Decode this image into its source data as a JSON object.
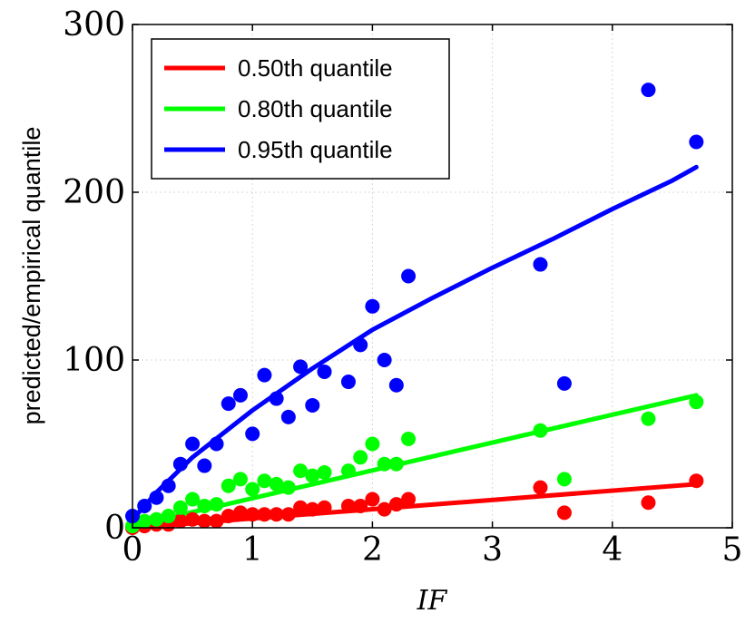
{
  "chart_data": {
    "type": "scatter",
    "xlabel": "IF",
    "ylabel": "predicted/empirical quantile",
    "xlim": [
      0,
      5
    ],
    "ylim": [
      0,
      300
    ],
    "xticks": [
      "0",
      "1",
      "2",
      "3",
      "4",
      "5"
    ],
    "yticks": [
      "0",
      "100",
      "200",
      "300"
    ],
    "grid": true,
    "legend_position": "top-left",
    "series": [
      {
        "name": "0.50th quantile",
        "color": "#ff0000",
        "points": [
          [
            0,
            0
          ],
          [
            0.1,
            1
          ],
          [
            0.2,
            2
          ],
          [
            0.3,
            2
          ],
          [
            0.4,
            4
          ],
          [
            0.5,
            5
          ],
          [
            0.6,
            4
          ],
          [
            0.7,
            4
          ],
          [
            0.8,
            7
          ],
          [
            0.9,
            9
          ],
          [
            1.0,
            8
          ],
          [
            1.1,
            8
          ],
          [
            1.2,
            8
          ],
          [
            1.3,
            8
          ],
          [
            1.4,
            12
          ],
          [
            1.5,
            11
          ],
          [
            1.6,
            12
          ],
          [
            1.8,
            13
          ],
          [
            1.9,
            13
          ],
          [
            2.0,
            17
          ],
          [
            2.1,
            11
          ],
          [
            2.2,
            14
          ],
          [
            2.3,
            17
          ],
          [
            3.4,
            24
          ],
          [
            3.6,
            9
          ],
          [
            4.3,
            15
          ],
          [
            4.7,
            28
          ]
        ],
        "fit": [
          [
            0,
            0
          ],
          [
            4.7,
            26
          ]
        ]
      },
      {
        "name": "0.80th quantile",
        "color": "#00ff00",
        "points": [
          [
            0,
            1
          ],
          [
            0.1,
            4
          ],
          [
            0.2,
            5
          ],
          [
            0.3,
            7
          ],
          [
            0.4,
            12
          ],
          [
            0.5,
            17
          ],
          [
            0.6,
            13
          ],
          [
            0.7,
            14
          ],
          [
            0.8,
            25
          ],
          [
            0.9,
            29
          ],
          [
            1.0,
            23
          ],
          [
            1.1,
            28
          ],
          [
            1.2,
            26
          ],
          [
            1.3,
            24
          ],
          [
            1.4,
            34
          ],
          [
            1.5,
            31
          ],
          [
            1.6,
            33
          ],
          [
            1.8,
            34
          ],
          [
            1.9,
            42
          ],
          [
            2.0,
            50
          ],
          [
            2.1,
            38
          ],
          [
            2.2,
            38
          ],
          [
            2.3,
            53
          ],
          [
            3.4,
            58
          ],
          [
            3.6,
            29
          ],
          [
            4.3,
            65
          ],
          [
            4.7,
            75
          ]
        ],
        "fit": [
          [
            0,
            1
          ],
          [
            4.7,
            79
          ]
        ]
      },
      {
        "name": "0.95th quantile",
        "color": "#0000ff",
        "points": [
          [
            0,
            7
          ],
          [
            0.1,
            13
          ],
          [
            0.2,
            18
          ],
          [
            0.3,
            25
          ],
          [
            0.4,
            38
          ],
          [
            0.5,
            50
          ],
          [
            0.6,
            37
          ],
          [
            0.7,
            50
          ],
          [
            0.8,
            74
          ],
          [
            0.9,
            79
          ],
          [
            1.0,
            56
          ],
          [
            1.1,
            91
          ],
          [
            1.2,
            77
          ],
          [
            1.3,
            66
          ],
          [
            1.4,
            96
          ],
          [
            1.5,
            73
          ],
          [
            1.6,
            93
          ],
          [
            1.8,
            87
          ],
          [
            1.9,
            109
          ],
          [
            2.0,
            132
          ],
          [
            2.1,
            100
          ],
          [
            2.2,
            85
          ],
          [
            2.3,
            150
          ],
          [
            3.4,
            157
          ],
          [
            3.6,
            86
          ],
          [
            4.3,
            261
          ],
          [
            4.7,
            230
          ]
        ],
        "fit": [
          [
            0,
            5
          ],
          [
            0.2,
            21
          ],
          [
            0.5,
            42
          ],
          [
            1.0,
            70
          ],
          [
            1.5,
            95
          ],
          [
            2.0,
            118
          ],
          [
            2.5,
            137
          ],
          [
            3.0,
            155
          ],
          [
            3.5,
            172
          ],
          [
            4.0,
            190
          ],
          [
            4.5,
            207
          ],
          [
            4.7,
            215
          ]
        ]
      }
    ]
  }
}
